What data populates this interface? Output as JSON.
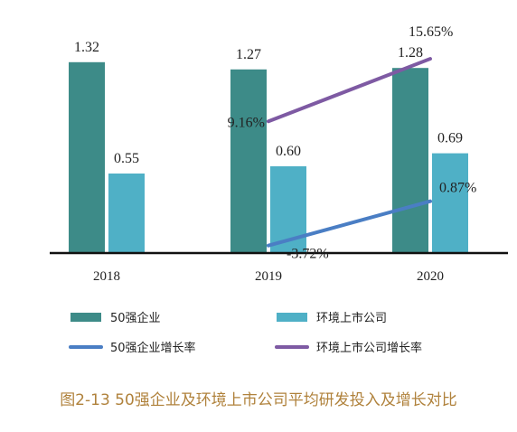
{
  "caption": "图2-13 50强企业及环境上市公司平均研发投入及增长对比",
  "chart_data": {
    "type": "bar",
    "categories": [
      "2018",
      "2019",
      "2020"
    ],
    "series": [
      {
        "name": "50强企业",
        "kind": "bar",
        "values": [
          1.32,
          1.27,
          1.28
        ],
        "labels": [
          "1.32",
          "1.27",
          "1.28"
        ],
        "color": "#3d8b88"
      },
      {
        "name": "环境上市公司",
        "kind": "bar",
        "values": [
          0.55,
          0.6,
          0.69
        ],
        "labels": [
          "0.55",
          "0.60",
          "0.69"
        ],
        "color": "#4fb0c6"
      },
      {
        "name": "50强企业增长率",
        "kind": "line",
        "values": [
          null,
          -3.72,
          0.87
        ],
        "labels": [
          "",
          "-3.72%",
          "0.87%"
        ],
        "color": "#4a7ec4"
      },
      {
        "name": "环境上市公司增长率",
        "kind": "line",
        "values": [
          null,
          9.16,
          15.65
        ],
        "labels": [
          "",
          "9.16%",
          "15.65%"
        ],
        "color": "#7e5aa3"
      }
    ],
    "bar_ylim": [
      0,
      1.5
    ],
    "line_ylim": [
      -4.5,
      18
    ],
    "legend_position": "bottom"
  }
}
